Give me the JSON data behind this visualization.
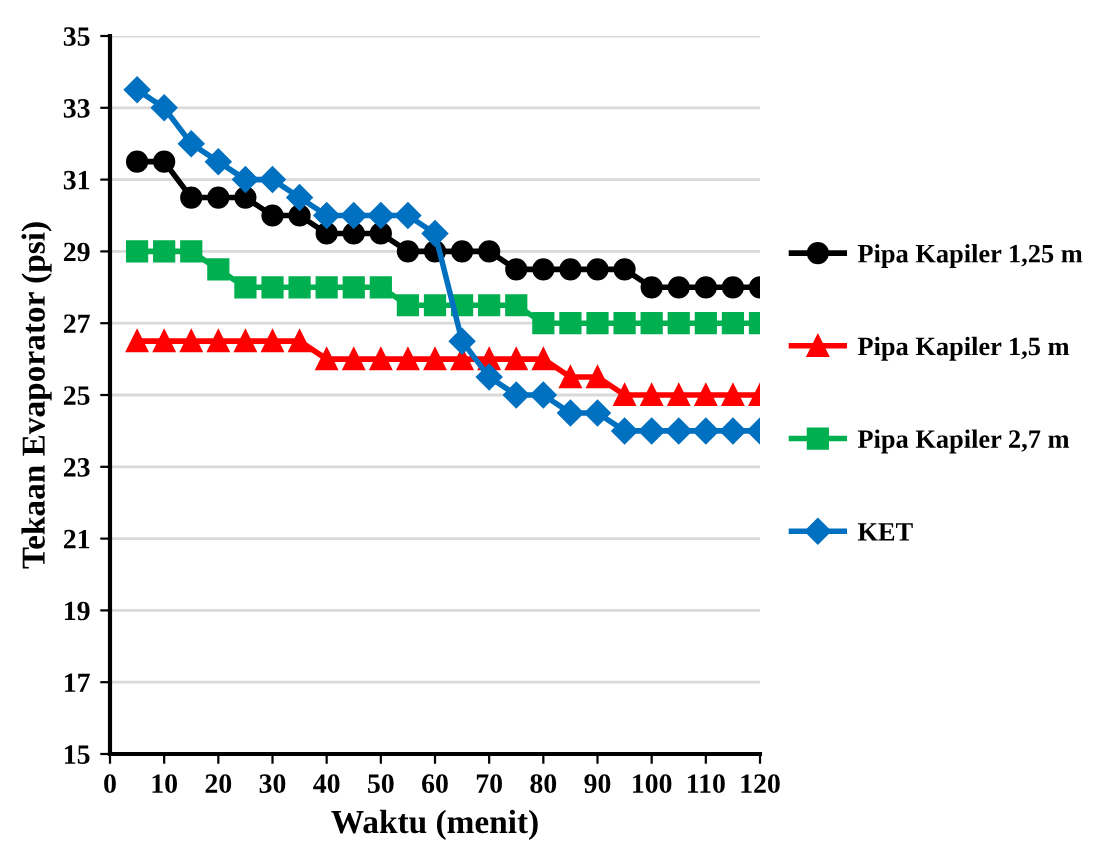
{
  "chart_data": {
    "type": "line",
    "xlabel": "Waktu (menit)",
    "ylabel": "Tekaan Evaporator (psi)",
    "x": [
      5,
      10,
      15,
      20,
      25,
      30,
      35,
      40,
      45,
      50,
      55,
      60,
      65,
      70,
      75,
      80,
      85,
      90,
      95,
      100,
      105,
      110,
      115,
      120
    ],
    "xlim": [
      0,
      120
    ],
    "xticks": [
      0,
      10,
      20,
      30,
      40,
      50,
      60,
      70,
      80,
      90,
      100,
      110,
      120
    ],
    "ylim": [
      15,
      35
    ],
    "yticks": [
      15,
      17,
      19,
      21,
      23,
      25,
      27,
      29,
      31,
      33,
      35
    ],
    "grid": "y",
    "legend": "right",
    "series": [
      {
        "name": "Pipa Kapiler 1,25 m",
        "color": "#000000",
        "marker": "circle",
        "values": [
          31.5,
          31.5,
          30.5,
          30.5,
          30.5,
          30,
          30,
          29.5,
          29.5,
          29.5,
          29,
          29,
          29,
          29,
          28.5,
          28.5,
          28.5,
          28.5,
          28.5,
          28,
          28,
          28,
          28,
          28
        ]
      },
      {
        "name": "Pipa Kapiler 1,5 m",
        "color": "#ff0000",
        "marker": "triangle",
        "values": [
          26.5,
          26.5,
          26.5,
          26.5,
          26.5,
          26.5,
          26.5,
          26,
          26,
          26,
          26,
          26,
          26,
          26,
          26,
          26,
          25.5,
          25.5,
          25,
          25,
          25,
          25,
          25,
          25
        ]
      },
      {
        "name": "Pipa Kapiler 2,7 m",
        "color": "#00b050",
        "marker": "square",
        "values": [
          29,
          29,
          29,
          28.5,
          28,
          28,
          28,
          28,
          28,
          28,
          27.5,
          27.5,
          27.5,
          27.5,
          27.5,
          27,
          27,
          27,
          27,
          27,
          27,
          27,
          27,
          27
        ]
      },
      {
        "name": "KET",
        "color": "#0070c0",
        "marker": "diamond",
        "values": [
          33.5,
          33,
          32,
          31.5,
          31,
          31,
          30.5,
          30,
          30,
          30,
          30,
          29.5,
          26.5,
          25.5,
          25,
          25,
          24.5,
          24.5,
          24,
          24,
          24,
          24,
          24,
          24
        ]
      }
    ]
  }
}
